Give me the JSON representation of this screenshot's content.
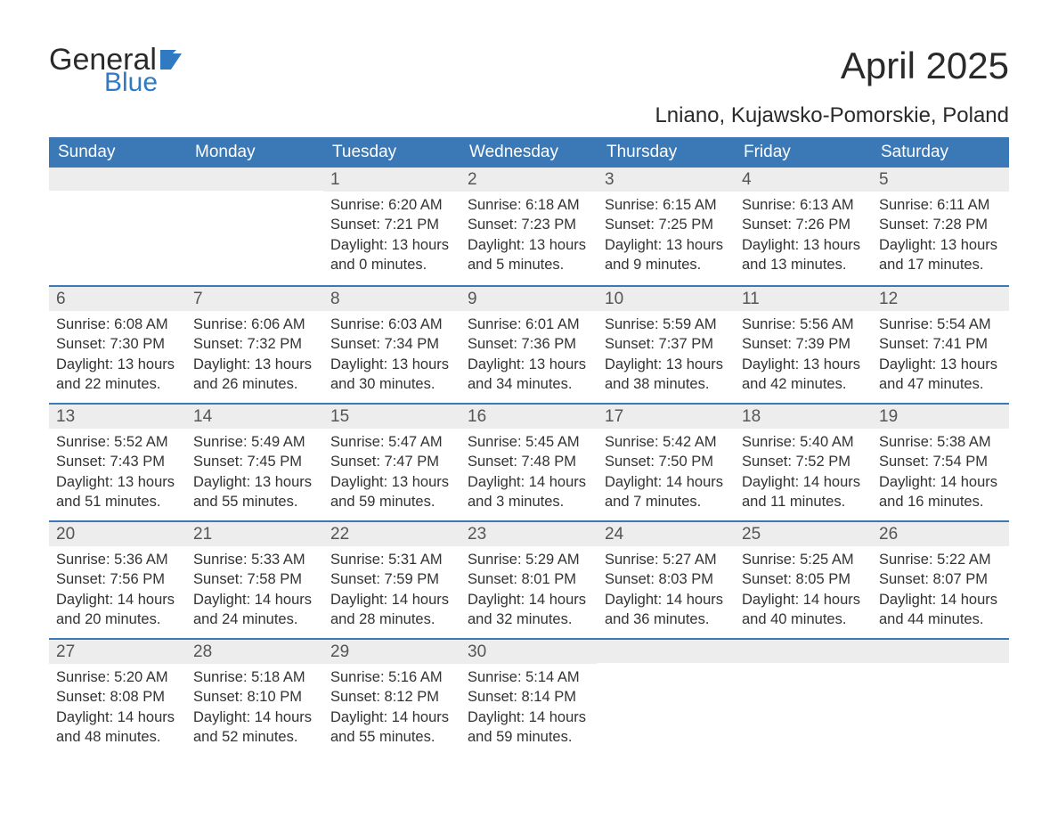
{
  "logo": {
    "word1": "General",
    "word2": "Blue",
    "text_color": "#2a2a2a",
    "accent_color": "#2f7ac0"
  },
  "title": "April 2025",
  "subtitle": "Lniano, Kujawsko-Pomorskie, Poland",
  "colors": {
    "header_bg": "#3a78b6",
    "header_text": "#ffffff",
    "daynum_bg": "#ededed",
    "body_text": "#333333",
    "rule": "#3a78b6"
  },
  "typography": {
    "title_fontsize": 42,
    "subtitle_fontsize": 24,
    "dayheader_fontsize": 19,
    "daynum_fontsize": 19,
    "body_fontsize": 16.5
  },
  "day_headers": [
    "Sunday",
    "Monday",
    "Tuesday",
    "Wednesday",
    "Thursday",
    "Friday",
    "Saturday"
  ],
  "weeks": [
    [
      {
        "num": "",
        "sunrise": "",
        "sunset": "",
        "daylight": ""
      },
      {
        "num": "",
        "sunrise": "",
        "sunset": "",
        "daylight": ""
      },
      {
        "num": "1",
        "sunrise": "Sunrise: 6:20 AM",
        "sunset": "Sunset: 7:21 PM",
        "daylight": "Daylight: 13 hours and 0 minutes."
      },
      {
        "num": "2",
        "sunrise": "Sunrise: 6:18 AM",
        "sunset": "Sunset: 7:23 PM",
        "daylight": "Daylight: 13 hours and 5 minutes."
      },
      {
        "num": "3",
        "sunrise": "Sunrise: 6:15 AM",
        "sunset": "Sunset: 7:25 PM",
        "daylight": "Daylight: 13 hours and 9 minutes."
      },
      {
        "num": "4",
        "sunrise": "Sunrise: 6:13 AM",
        "sunset": "Sunset: 7:26 PM",
        "daylight": "Daylight: 13 hours and 13 minutes."
      },
      {
        "num": "5",
        "sunrise": "Sunrise: 6:11 AM",
        "sunset": "Sunset: 7:28 PM",
        "daylight": "Daylight: 13 hours and 17 minutes."
      }
    ],
    [
      {
        "num": "6",
        "sunrise": "Sunrise: 6:08 AM",
        "sunset": "Sunset: 7:30 PM",
        "daylight": "Daylight: 13 hours and 22 minutes."
      },
      {
        "num": "7",
        "sunrise": "Sunrise: 6:06 AM",
        "sunset": "Sunset: 7:32 PM",
        "daylight": "Daylight: 13 hours and 26 minutes."
      },
      {
        "num": "8",
        "sunrise": "Sunrise: 6:03 AM",
        "sunset": "Sunset: 7:34 PM",
        "daylight": "Daylight: 13 hours and 30 minutes."
      },
      {
        "num": "9",
        "sunrise": "Sunrise: 6:01 AM",
        "sunset": "Sunset: 7:36 PM",
        "daylight": "Daylight: 13 hours and 34 minutes."
      },
      {
        "num": "10",
        "sunrise": "Sunrise: 5:59 AM",
        "sunset": "Sunset: 7:37 PM",
        "daylight": "Daylight: 13 hours and 38 minutes."
      },
      {
        "num": "11",
        "sunrise": "Sunrise: 5:56 AM",
        "sunset": "Sunset: 7:39 PM",
        "daylight": "Daylight: 13 hours and 42 minutes."
      },
      {
        "num": "12",
        "sunrise": "Sunrise: 5:54 AM",
        "sunset": "Sunset: 7:41 PM",
        "daylight": "Daylight: 13 hours and 47 minutes."
      }
    ],
    [
      {
        "num": "13",
        "sunrise": "Sunrise: 5:52 AM",
        "sunset": "Sunset: 7:43 PM",
        "daylight": "Daylight: 13 hours and 51 minutes."
      },
      {
        "num": "14",
        "sunrise": "Sunrise: 5:49 AM",
        "sunset": "Sunset: 7:45 PM",
        "daylight": "Daylight: 13 hours and 55 minutes."
      },
      {
        "num": "15",
        "sunrise": "Sunrise: 5:47 AM",
        "sunset": "Sunset: 7:47 PM",
        "daylight": "Daylight: 13 hours and 59 minutes."
      },
      {
        "num": "16",
        "sunrise": "Sunrise: 5:45 AM",
        "sunset": "Sunset: 7:48 PM",
        "daylight": "Daylight: 14 hours and 3 minutes."
      },
      {
        "num": "17",
        "sunrise": "Sunrise: 5:42 AM",
        "sunset": "Sunset: 7:50 PM",
        "daylight": "Daylight: 14 hours and 7 minutes."
      },
      {
        "num": "18",
        "sunrise": "Sunrise: 5:40 AM",
        "sunset": "Sunset: 7:52 PM",
        "daylight": "Daylight: 14 hours and 11 minutes."
      },
      {
        "num": "19",
        "sunrise": "Sunrise: 5:38 AM",
        "sunset": "Sunset: 7:54 PM",
        "daylight": "Daylight: 14 hours and 16 minutes."
      }
    ],
    [
      {
        "num": "20",
        "sunrise": "Sunrise: 5:36 AM",
        "sunset": "Sunset: 7:56 PM",
        "daylight": "Daylight: 14 hours and 20 minutes."
      },
      {
        "num": "21",
        "sunrise": "Sunrise: 5:33 AM",
        "sunset": "Sunset: 7:58 PM",
        "daylight": "Daylight: 14 hours and 24 minutes."
      },
      {
        "num": "22",
        "sunrise": "Sunrise: 5:31 AM",
        "sunset": "Sunset: 7:59 PM",
        "daylight": "Daylight: 14 hours and 28 minutes."
      },
      {
        "num": "23",
        "sunrise": "Sunrise: 5:29 AM",
        "sunset": "Sunset: 8:01 PM",
        "daylight": "Daylight: 14 hours and 32 minutes."
      },
      {
        "num": "24",
        "sunrise": "Sunrise: 5:27 AM",
        "sunset": "Sunset: 8:03 PM",
        "daylight": "Daylight: 14 hours and 36 minutes."
      },
      {
        "num": "25",
        "sunrise": "Sunrise: 5:25 AM",
        "sunset": "Sunset: 8:05 PM",
        "daylight": "Daylight: 14 hours and 40 minutes."
      },
      {
        "num": "26",
        "sunrise": "Sunrise: 5:22 AM",
        "sunset": "Sunset: 8:07 PM",
        "daylight": "Daylight: 14 hours and 44 minutes."
      }
    ],
    [
      {
        "num": "27",
        "sunrise": "Sunrise: 5:20 AM",
        "sunset": "Sunset: 8:08 PM",
        "daylight": "Daylight: 14 hours and 48 minutes."
      },
      {
        "num": "28",
        "sunrise": "Sunrise: 5:18 AM",
        "sunset": "Sunset: 8:10 PM",
        "daylight": "Daylight: 14 hours and 52 minutes."
      },
      {
        "num": "29",
        "sunrise": "Sunrise: 5:16 AM",
        "sunset": "Sunset: 8:12 PM",
        "daylight": "Daylight: 14 hours and 55 minutes."
      },
      {
        "num": "30",
        "sunrise": "Sunrise: 5:14 AM",
        "sunset": "Sunset: 8:14 PM",
        "daylight": "Daylight: 14 hours and 59 minutes."
      },
      {
        "num": "",
        "sunrise": "",
        "sunset": "",
        "daylight": ""
      },
      {
        "num": "",
        "sunrise": "",
        "sunset": "",
        "daylight": ""
      },
      {
        "num": "",
        "sunrise": "",
        "sunset": "",
        "daylight": ""
      }
    ]
  ]
}
